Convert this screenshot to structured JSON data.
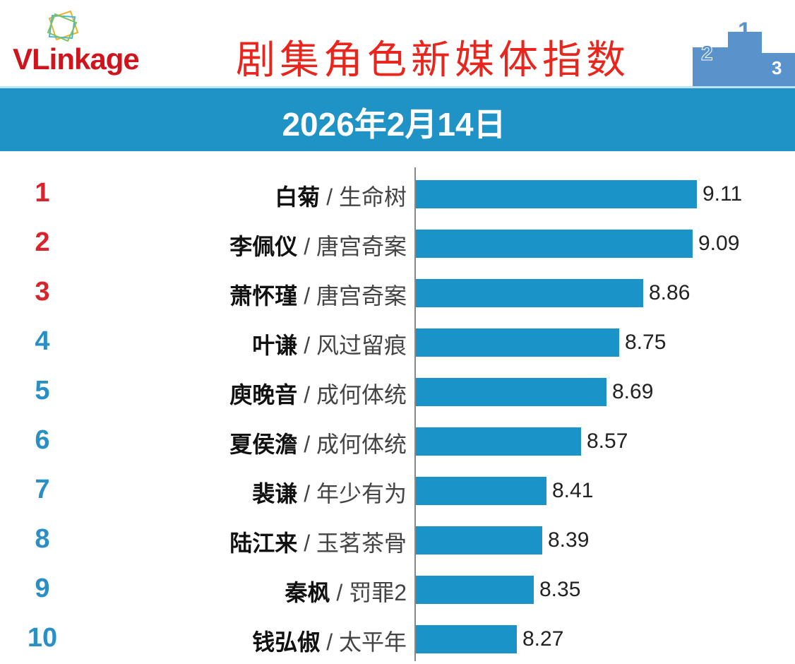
{
  "header": {
    "logo": "VLinkage",
    "title": "剧集角色新媒体指数",
    "date": "2026年2月14日",
    "podium_numbers": [
      "2",
      "1",
      "3"
    ]
  },
  "colors": {
    "bar": "#1a93c8",
    "rank_top": "#d9232d",
    "rank_other": "#2a8fc5",
    "band": "#1f93c5"
  },
  "chart_data": {
    "type": "bar",
    "orientation": "horizontal",
    "title": "剧集角色新媒体指数",
    "subtitle": "2026年2月14日",
    "xlim": [
      7.8,
      9.3
    ],
    "ranks": [
      "1",
      "2",
      "3",
      "4",
      "5",
      "6",
      "7",
      "8",
      "9",
      "10"
    ],
    "characters": [
      "白菊",
      "李佩仪",
      "萧怀瑾",
      "叶谦",
      "庾晚音",
      "夏侯澹",
      "裴谦",
      "陆江来",
      "秦枫",
      "钱弘俶"
    ],
    "shows": [
      "生命树",
      "唐宫奇案",
      "唐宫奇案",
      "风过留痕",
      "成何体统",
      "成何体统",
      "年少有为",
      "玉茗茶骨",
      "罚罪2",
      "太平年"
    ],
    "values": [
      9.11,
      9.09,
      8.86,
      8.75,
      8.69,
      8.57,
      8.41,
      8.39,
      8.35,
      8.27
    ],
    "value_labels": [
      "9.11",
      "9.09",
      "8.86",
      "8.75",
      "8.69",
      "8.57",
      "8.41",
      "8.39",
      "8.35",
      "8.27"
    ],
    "separator": "/"
  }
}
